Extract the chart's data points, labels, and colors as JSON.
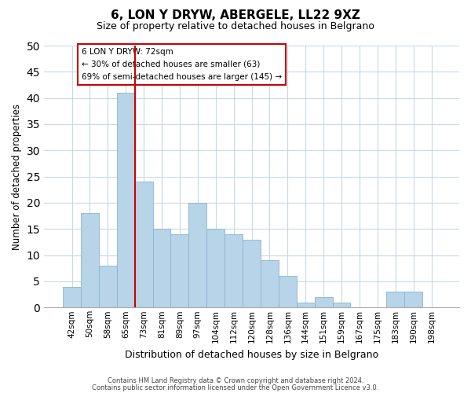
{
  "title": "6, LON Y DRYW, ABERGELE, LL22 9XZ",
  "subtitle": "Size of property relative to detached houses in Belgrano",
  "xlabel": "Distribution of detached houses by size in Belgrano",
  "ylabel": "Number of detached properties",
  "bar_labels": [
    "42sqm",
    "50sqm",
    "58sqm",
    "65sqm",
    "73sqm",
    "81sqm",
    "89sqm",
    "97sqm",
    "104sqm",
    "112sqm",
    "120sqm",
    "128sqm",
    "136sqm",
    "144sqm",
    "151sqm",
    "159sqm",
    "167sqm",
    "175sqm",
    "183sqm",
    "190sqm",
    "198sqm"
  ],
  "bar_values": [
    4,
    18,
    8,
    41,
    24,
    15,
    14,
    20,
    15,
    14,
    13,
    9,
    6,
    1,
    2,
    1,
    0,
    0,
    3,
    3,
    0
  ],
  "bar_color": "#b8d4e8",
  "bar_edge_color": "#8ab4d0",
  "vline_color": "#cc0000",
  "vline_position": 3.5,
  "ylim": [
    0,
    50
  ],
  "yticks": [
    0,
    5,
    10,
    15,
    20,
    25,
    30,
    35,
    40,
    45,
    50
  ],
  "annotation_title": "6 LON Y DRYW: 72sqm",
  "annotation_line1": "← 30% of detached houses are smaller (63)",
  "annotation_line2": "69% of semi-detached houses are larger (145) →",
  "annotation_box_color": "#ffffff",
  "annotation_box_edge": "#cc0000",
  "footer_line1": "Contains HM Land Registry data © Crown copyright and database right 2024.",
  "footer_line2": "Contains public sector information licensed under the Open Government Licence v3.0.",
  "background_color": "#ffffff",
  "grid_color": "#c8d8e8"
}
